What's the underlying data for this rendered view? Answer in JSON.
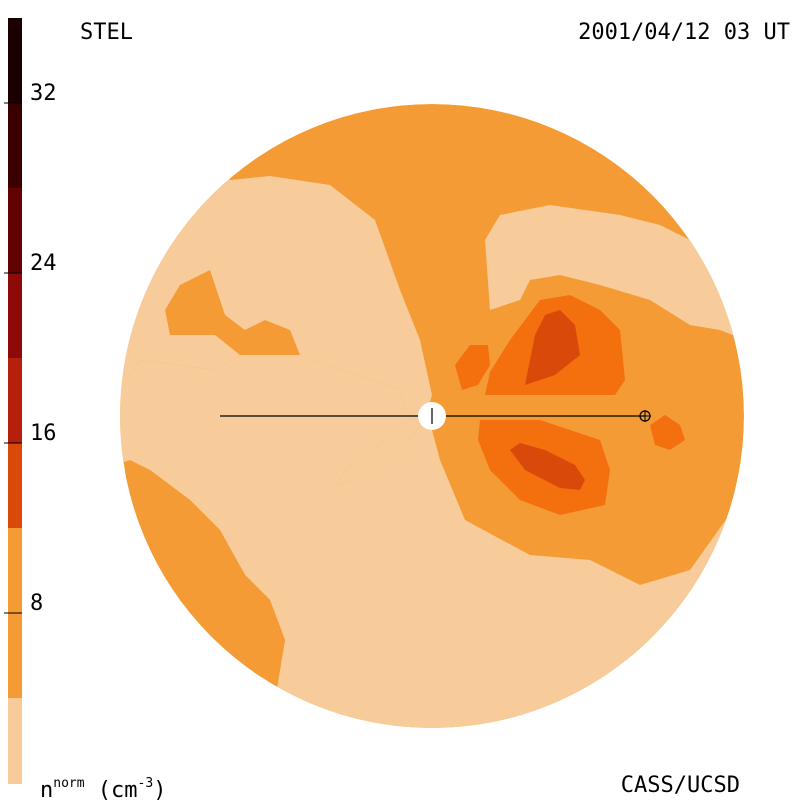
{
  "header": {
    "source": "STEL",
    "datetime": "2001/04/12 03 UT"
  },
  "footer": {
    "credit": "CASS/UCSD",
    "unit_base": "n",
    "unit_sup": "norm",
    "unit_paren_open": " (cm",
    "unit_exp": "-3",
    "unit_paren_close": ")"
  },
  "colorbar": {
    "ticks": [
      "8",
      "16",
      "24",
      "32"
    ],
    "levels": [
      0,
      4,
      8,
      12,
      16,
      20,
      24,
      28,
      32,
      36
    ],
    "colors": [
      "#f7cc9a",
      "#f59b35",
      "#f46f0e",
      "#d94a0a",
      "#b61f0c",
      "#8e0a08",
      "#620202",
      "#3a0000",
      "#1a0000"
    ]
  },
  "map_colors": {
    "background": "#f7cc9a",
    "level1": "#f59b35",
    "level2": "#f46f0e",
    "level3": "#d94a0a",
    "sun": "#ffffff"
  },
  "markers": {
    "sun_symbol": "sun-marker",
    "earth_symbol": "earth-marker"
  }
}
